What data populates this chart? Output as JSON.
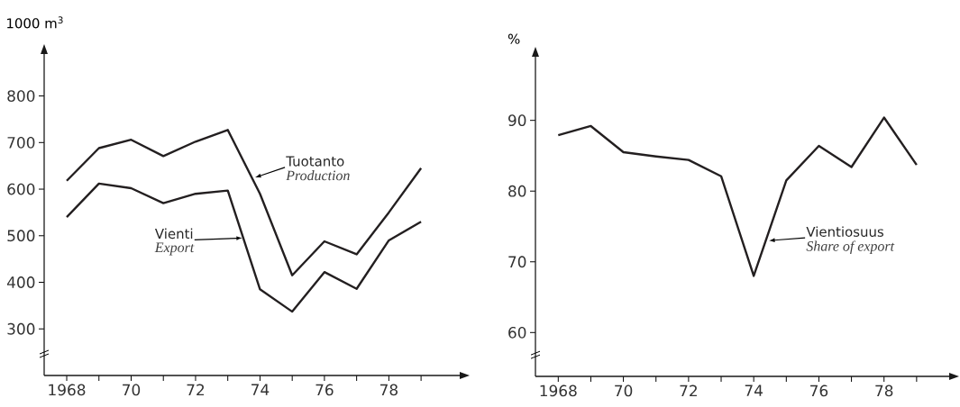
{
  "chart_data": [
    {
      "type": "line",
      "ylabel": "1000 m$^{3}$",
      "x": [
        1968,
        1969,
        1970,
        1971,
        1972,
        1973,
        1974,
        1975,
        1976,
        1977,
        1978,
        1979
      ],
      "series": [
        {
          "color": "#231f20",
          "values": [
            618,
            688,
            706,
            671,
            702,
            727,
            590,
            415,
            488,
            460,
            550,
            645
          ]
        },
        {
          "color": "#231f20",
          "values": [
            540,
            612,
            602,
            570,
            590,
            597,
            385,
            337,
            422,
            386,
            490,
            530
          ]
        }
      ],
      "xlim": [
        1967.3,
        1980.2
      ],
      "ylim": [
        200,
        890
      ],
      "xticks": [
        {
          "value": 1968,
          "label": "1968"
        },
        {
          "value": 1969,
          "label": null
        },
        {
          "value": 1970,
          "label": "70"
        },
        {
          "value": 1971,
          "label": null
        },
        {
          "value": 1972,
          "label": "72"
        },
        {
          "value": 1973,
          "label": null
        },
        {
          "value": 1974,
          "label": "74"
        },
        {
          "value": 1975,
          "label": null
        },
        {
          "value": 1976,
          "label": "76"
        },
        {
          "value": 1977,
          "label": null
        },
        {
          "value": 1978,
          "label": "78"
        },
        {
          "value": 1979,
          "label": null
        }
      ],
      "yticks": [
        300,
        400,
        500,
        600,
        700,
        800
      ],
      "marker": "none",
      "line_style": "solid",
      "annotations": [
        {
          "text": "Tuotanto",
          "x": 1973.85,
          "y": 625
        },
        "Production",
        {
          "text": "Vienti",
          "x": 1973.45,
          "y": 495
        },
        "Export"
      ]
    },
    {
      "type": "line",
      "ylabel": "%",
      "x": [
        1968,
        1969,
        1970,
        1971,
        1972,
        1973,
        1974,
        1975,
        1976,
        1977,
        1978,
        1979
      ],
      "series": [
        {
          "color": "#231f20",
          "values": [
            87.9,
            89.2,
            85.5,
            84.9,
            84.4,
            82.1,
            68.0,
            81.5,
            86.4,
            83.4,
            90.4,
            83.7
          ]
        }
      ],
      "xlim": [
        1967.3,
        1980
      ],
      "ylim": [
        53.8,
        99
      ],
      "xticks": [
        {
          "value": 1968,
          "label": "1968"
        },
        {
          "value": 1969,
          "label": null
        },
        {
          "value": 1970,
          "label": "70"
        },
        {
          "value": 1971,
          "label": null
        },
        {
          "value": 1972,
          "label": "72"
        },
        {
          "value": 1973,
          "label": null
        },
        {
          "value": 1974,
          "label": "74"
        },
        {
          "value": 1975,
          "label": null
        },
        {
          "value": 1976,
          "label": "76"
        },
        {
          "value": 1977,
          "label": null
        },
        {
          "value": 1978,
          "label": "78"
        },
        {
          "value": 1979,
          "label": null
        }
      ],
      "yticks": [
        60,
        70,
        80,
        90
      ],
      "marker": "none",
      "line_style": "solid",
      "annotations": [
        {
          "text": "Vientiosuus",
          "x": 1974.47,
          "y": 73.0
        },
        "Share of export"
      ]
    }
  ]
}
